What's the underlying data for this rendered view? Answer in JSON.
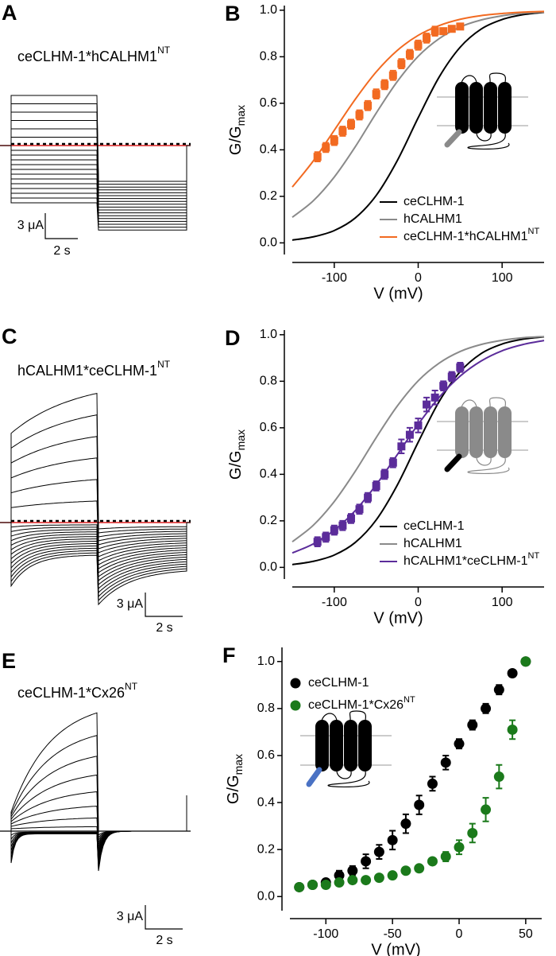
{
  "traces": [
    {
      "label": "A",
      "title": "ceCLHM-1*hCALHM1",
      "title_sup": "NT",
      "scale_y": "3 μA",
      "scale_x": "2 s"
    },
    {
      "label": "C",
      "title": "hCALHM1*ceCLHM-1",
      "title_sup": "NT",
      "scale_y": "3 μA",
      "scale_x": "2 s"
    },
    {
      "label": "E",
      "title": "ceCLHM-1*Cx26",
      "title_sup": "NT",
      "scale_y": "3 μA",
      "scale_x": "2 s"
    }
  ],
  "chart_data": [
    {
      "type": "line",
      "label": "B",
      "xlabel": "V (mV)",
      "ylabel": "G/G",
      "ylabel_sub": "max",
      "xlim": [
        -150,
        150
      ],
      "xticks": [
        -100,
        0,
        100
      ],
      "ylim": [
        -0.05,
        1.02
      ],
      "yticks": [
        {
          "value": 0,
          "label": "0.0"
        },
        0.2,
        0.4,
        0.6,
        0.8,
        {
          "value": 1,
          "label": "1.0"
        }
      ],
      "legend": "lower right",
      "x": [
        -150,
        -125,
        -100,
        -75,
        -50,
        -25,
        0,
        25,
        50,
        75,
        100,
        125,
        150
      ],
      "series": [
        {
          "name": "ceCLHM-1",
          "color": "#000000",
          "values": [
            0.012,
            0.026,
            0.053,
            0.107,
            0.204,
            0.353,
            0.538,
            0.713,
            0.841,
            0.919,
            0.96,
            0.981,
            0.991
          ]
        },
        {
          "name": "hCALHM1",
          "color": "#8a8a8a",
          "values": [
            0.11,
            0.181,
            0.283,
            0.413,
            0.558,
            0.693,
            0.802,
            0.878,
            0.928,
            0.958,
            0.976,
            0.987,
            0.992
          ]
        },
        {
          "name": "ceCLHM-1*hCALHM1",
          "name_sup": "NT",
          "color": "#f26a21",
          "values": [
            0.24,
            0.352,
            0.484,
            0.617,
            0.735,
            0.827,
            0.892,
            0.934,
            0.961,
            0.977,
            0.986,
            0.992,
            0.995
          ],
          "points": {
            "marker": "square",
            "x": [
              -120,
              -110,
              -100,
              -90,
              -80,
              -70,
              -60,
              -50,
              -40,
              -30,
              -20,
              -10,
              0,
              10,
              20,
              30,
              40,
              50
            ],
            "values": [
              0.37,
              0.41,
              0.44,
              0.48,
              0.51,
              0.55,
              0.59,
              0.64,
              0.68,
              0.72,
              0.77,
              0.81,
              0.85,
              0.88,
              0.91,
              0.91,
              0.92,
              0.93
            ],
            "errors": [
              0.02,
              0.02,
              0.02,
              0.02,
              0.02,
              0.02,
              0.02,
              0.02,
              0.02,
              0.02,
              0.02,
              0.02,
              0.02,
              0.02,
              0.02,
              0.01,
              0.01,
              0.01
            ]
          }
        }
      ]
    },
    {
      "type": "line",
      "label": "D",
      "xlabel": "V (mV)",
      "ylabel": "G/G",
      "ylabel_sub": "max",
      "xlim": [
        -150,
        150
      ],
      "xticks": [
        -100,
        0,
        100
      ],
      "ylim": [
        -0.05,
        1.02
      ],
      "yticks": [
        {
          "value": 0,
          "label": "0.0"
        },
        0.2,
        0.4,
        0.6,
        0.8,
        {
          "value": 1,
          "label": "1.0"
        }
      ],
      "legend": "lower right",
      "x": [
        -150,
        -125,
        -100,
        -75,
        -50,
        -25,
        0,
        25,
        50,
        75,
        100,
        125,
        150
      ],
      "series": [
        {
          "name": "ceCLHM-1",
          "color": "#000000",
          "values": [
            0.012,
            0.026,
            0.053,
            0.107,
            0.204,
            0.353,
            0.538,
            0.713,
            0.841,
            0.919,
            0.96,
            0.981,
            0.991
          ]
        },
        {
          "name": "hCALHM1",
          "color": "#8a8a8a",
          "values": [
            0.11,
            0.181,
            0.283,
            0.413,
            0.558,
            0.693,
            0.802,
            0.878,
            0.928,
            0.958,
            0.976,
            0.987,
            0.992
          ]
        },
        {
          "name": "hCALHM1*ceCLHM-1",
          "name_sup": "NT",
          "color": "#5b2c9a",
          "values": [
            0.062,
            0.101,
            0.16,
            0.244,
            0.355,
            0.484,
            0.615,
            0.731,
            0.822,
            0.887,
            0.931,
            0.958,
            0.975
          ],
          "points": {
            "marker": "square",
            "x": [
              -120,
              -110,
              -100,
              -90,
              -80,
              -70,
              -60,
              -50,
              -40,
              -30,
              -20,
              -10,
              0,
              10,
              20,
              30,
              40,
              50
            ],
            "values": [
              0.11,
              0.13,
              0.16,
              0.18,
              0.21,
              0.25,
              0.3,
              0.35,
              0.4,
              0.45,
              0.52,
              0.57,
              0.61,
              0.7,
              0.73,
              0.78,
              0.82,
              0.86
            ],
            "errors": [
              0.02,
              0.02,
              0.02,
              0.02,
              0.02,
              0.02,
              0.02,
              0.02,
              0.02,
              0.02,
              0.03,
              0.03,
              0.03,
              0.03,
              0.03,
              0.02,
              0.02,
              0.02
            ]
          }
        }
      ]
    },
    {
      "type": "scatter",
      "label": "F",
      "xlabel": "V (mV)",
      "ylabel": "G/G",
      "ylabel_sub": "max",
      "xlim": [
        -127,
        62
      ],
      "xticks": [
        -100,
        -50,
        0,
        50
      ],
      "ylim": [
        -0.06,
        1.06
      ],
      "yticks": [
        {
          "value": 0,
          "label": "0.0"
        },
        0.2,
        0.4,
        0.6,
        0.8,
        {
          "value": 1,
          "label": "1.0"
        }
      ],
      "legend": "upper left",
      "series": [
        {
          "name": "ceCLHM-1",
          "color": "#000000",
          "marker": "circle",
          "x": [
            -120,
            -110,
            -100,
            -90,
            -80,
            -70,
            -60,
            -50,
            -40,
            -30,
            -20,
            -10,
            0,
            10,
            20,
            30,
            40,
            50
          ],
          "values": [
            0.04,
            0.05,
            0.06,
            0.09,
            0.11,
            0.15,
            0.19,
            0.24,
            0.31,
            0.39,
            0.48,
            0.57,
            0.65,
            0.73,
            0.8,
            0.88,
            0.95,
            1.0
          ],
          "errors": [
            0.01,
            0.01,
            0.01,
            0.02,
            0.02,
            0.03,
            0.03,
            0.04,
            0.04,
            0.04,
            0.03,
            0.03,
            0.02,
            0.02,
            0.02,
            0.02,
            0.01,
            0.01
          ]
        },
        {
          "name": "ceCLHM-1*Cx26",
          "name_sup": "NT",
          "color": "#1b7a1b",
          "marker": "circle",
          "x": [
            -120,
            -110,
            -100,
            -90,
            -80,
            -70,
            -60,
            -50,
            -40,
            -30,
            -20,
            -10,
            0,
            10,
            20,
            30,
            40,
            50
          ],
          "values": [
            0.04,
            0.05,
            0.05,
            0.06,
            0.07,
            0.07,
            0.08,
            0.09,
            0.11,
            0.12,
            0.15,
            0.17,
            0.21,
            0.27,
            0.37,
            0.51,
            0.71,
            1.0
          ],
          "errors": [
            0.01,
            0.01,
            0.01,
            0.01,
            0.01,
            0.01,
            0.01,
            0.01,
            0.01,
            0.01,
            0.01,
            0.02,
            0.03,
            0.04,
            0.05,
            0.05,
            0.04,
            0.01
          ]
        }
      ]
    }
  ]
}
